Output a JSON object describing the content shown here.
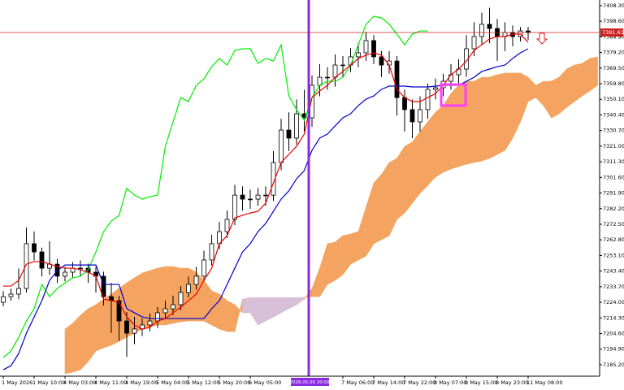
{
  "chart_data": {
    "type": "candlestick",
    "ylim": [
      7178.1,
      7411.8
    ],
    "yticks": [
      {
        "value": 7408.3,
        "label": "7408.30"
      },
      {
        "value": 7398.6,
        "label": "7398.60"
      },
      {
        "value": 7388.9,
        "label": "7388.90"
      },
      {
        "value": 7379.2,
        "label": "7379.20"
      },
      {
        "value": 7369.5,
        "label": "7369.50"
      },
      {
        "value": 7359.8,
        "label": "7359.80"
      },
      {
        "value": 7350.1,
        "label": "7350.10"
      },
      {
        "value": 7340.4,
        "label": "7340.40"
      },
      {
        "value": 7330.7,
        "label": "7330.70"
      },
      {
        "value": 7321.0,
        "label": "7321.00"
      },
      {
        "value": 7311.3,
        "label": "7311.30"
      },
      {
        "value": 7301.6,
        "label": "7301.60"
      },
      {
        "value": 7291.9,
        "label": "7291.90"
      },
      {
        "value": 7282.2,
        "label": "7282.20"
      },
      {
        "value": 7272.5,
        "label": "7272.50"
      },
      {
        "value": 7262.8,
        "label": "7262.80"
      },
      {
        "value": 7253.1,
        "label": "7253.10"
      },
      {
        "value": 7243.4,
        "label": "7243.40"
      },
      {
        "value": 7233.7,
        "label": "7233.70"
      },
      {
        "value": 7224.0,
        "label": "7224.00"
      },
      {
        "value": 7214.3,
        "label": "7214.30"
      },
      {
        "value": 7204.6,
        "label": "7204.60"
      },
      {
        "value": 7194.9,
        "label": "7194.90"
      },
      {
        "value": 7185.2,
        "label": "7185.20"
      }
    ],
    "xticks": [
      {
        "value": 0,
        "label": "1 May 2026"
      },
      {
        "value": 4,
        "label": "1 May 10:00"
      },
      {
        "value": 8,
        "label": "4 May 03:00"
      },
      {
        "value": 12,
        "label": "4 May 11:00"
      },
      {
        "value": 16,
        "label": "4 May 19:00"
      },
      {
        "value": 20,
        "label": "5 May 04:00"
      },
      {
        "value": 24,
        "label": "5 May 12:00"
      },
      {
        "value": 28,
        "label": "5 May 20:00"
      },
      {
        "value": 32,
        "label": "6 May 05:00"
      },
      {
        "value": 44,
        "label": "7 May 06:00"
      },
      {
        "value": 48,
        "label": "7 May 14:00"
      },
      {
        "value": 52,
        "label": "7 May 22:00"
      },
      {
        "value": 56,
        "label": "8 May 07:00"
      },
      {
        "value": 60,
        "label": "8 May 15:00"
      },
      {
        "value": 64,
        "label": "8 May 23:00"
      },
      {
        "value": 68,
        "label": "11 May 08:00"
      }
    ],
    "candles": {
      "color_up": "#ffffff",
      "color_down": "#000000",
      "open": [
        7224.0,
        7227.5,
        7229.1,
        7232.6,
        7260.4,
        7255.3,
        7245.2,
        7247.7,
        7240.2,
        7242.7,
        7245.2,
        7245.2,
        7242.7,
        7240.2,
        7227.5,
        7225.0,
        7212.4,
        7204.8,
        7207.4,
        7209.9,
        7212.4,
        7217.5,
        7220.0,
        7222.5,
        7230.1,
        7235.1,
        7240.2,
        7250.3,
        7260.4,
        7267.9,
        7275.5,
        7290.6,
        7288.1,
        7288.1,
        7290.6,
        7290.6,
        7310.8,
        7331.0,
        7326.0,
        7341.1,
        7338.6,
        7358.8,
        7363.8,
        7363.8,
        7371.4,
        7371.4,
        7376.5,
        7379.0,
        7386.6,
        7376.5,
        7371.4,
        7373.9,
        7351.2,
        7343.7,
        7336.1,
        7343.7,
        7356.3,
        7357.3,
        7361.3,
        7365.4,
        7368.9,
        7381.5,
        7389.1,
        7396.7,
        7394.1,
        7389.1,
        7391.6,
        7389.1,
        7392.6
      ],
      "high": [
        7231.0,
        7232.5,
        7245.0,
        7270.5,
        7268.0,
        7258.0,
        7262.0,
        7251.0,
        7246.0,
        7249.0,
        7250.0,
        7248.0,
        7246.0,
        7243.0,
        7236.0,
        7228.0,
        7218.0,
        7215.0,
        7214.0,
        7217.0,
        7221.0,
        7225.0,
        7228.0,
        7234.0,
        7240.0,
        7246.0,
        7256.0,
        7266.0,
        7274.0,
        7281.0,
        7297.0,
        7296.0,
        7294.0,
        7295.0,
        7296.0,
        7318.0,
        7338.0,
        7342.0,
        7350.0,
        7356.0,
        7365.0,
        7372.0,
        7370.0,
        7378.0,
        7377.0,
        7382.0,
        7385.0,
        7392.0,
        7390.0,
        7380.0,
        7380.0,
        7377.0,
        7356.0,
        7350.0,
        7352.0,
        7360.0,
        7363.0,
        7366.0,
        7372.0,
        7375.0,
        7390.0,
        7398.0,
        7404.0,
        7407.0,
        7400.0,
        7398.0,
        7396.0,
        7395.0,
        7395.0
      ],
      "low": [
        7221.5,
        7225.0,
        7226.0,
        7230.0,
        7250.0,
        7240.0,
        7241.0,
        7236.0,
        7237.0,
        7239.0,
        7240.0,
        7236.0,
        7230.0,
        7222.0,
        7205.0,
        7200.0,
        7190.0,
        7198.0,
        7203.0,
        7206.0,
        7208.0,
        7214.0,
        7216.0,
        7219.0,
        7227.0,
        7232.0,
        7237.0,
        7247.0,
        7257.0,
        7264.0,
        7272.0,
        7281.0,
        7282.0,
        7284.0,
        7284.0,
        7287.0,
        7306.0,
        7318.0,
        7322.0,
        7330.0,
        7333.0,
        7352.0,
        7356.0,
        7358.0,
        7364.0,
        7367.0,
        7370.0,
        7374.0,
        7372.0,
        7364.0,
        7366.0,
        7340.0,
        7330.0,
        7326.0,
        7330.0,
        7338.0,
        7350.0,
        7352.0,
        7356.0,
        7360.0,
        7364.0,
        7377.0,
        7384.0,
        7385.0,
        7374.0,
        7380.0,
        7383.0,
        7386.0,
        7387.0
      ],
      "close": [
        7227.5,
        7229.1,
        7232.6,
        7260.4,
        7255.3,
        7245.2,
        7247.7,
        7240.2,
        7242.7,
        7245.2,
        7245.2,
        7242.7,
        7240.2,
        7227.5,
        7225.0,
        7212.4,
        7204.8,
        7207.4,
        7209.9,
        7212.4,
        7217.5,
        7220.0,
        7222.5,
        7230.1,
        7235.1,
        7240.2,
        7250.3,
        7260.4,
        7267.9,
        7275.5,
        7290.6,
        7288.1,
        7288.1,
        7290.6,
        7290.6,
        7310.8,
        7331.0,
        7326.0,
        7341.1,
        7338.6,
        7358.8,
        7363.8,
        7363.8,
        7371.4,
        7371.4,
        7376.5,
        7379.0,
        7386.6,
        7376.5,
        7371.4,
        7373.9,
        7351.2,
        7343.7,
        7336.1,
        7343.7,
        7356.3,
        7357.3,
        7361.3,
        7365.4,
        7368.9,
        7381.5,
        7389.1,
        7396.7,
        7394.1,
        7389.1,
        7391.6,
        7389.1,
        7392.6,
        7391.6
      ]
    },
    "cloud": {
      "colors": [
        "#f4a460",
        "#d8bfd8"
      ],
      "span_a": [
        null,
        null,
        null,
        null,
        null,
        null,
        null,
        null,
        7207.4,
        7210.9,
        7215.9,
        7220.0,
        7222.5,
        7226.0,
        7229.1,
        7232.6,
        7236.1,
        7239.2,
        7242.2,
        7243.7,
        7245.2,
        7246.2,
        7246.2,
        7245.2,
        7245.2,
        7242.7,
        7237.6,
        7231.1,
        7229.1,
        7225.0,
        7222.5,
        7217.5,
        7217.5,
        7209.9,
        7212.4,
        7214.9,
        7217.5,
        7220.0,
        7222.5,
        7226.0,
        7232.6,
        7245.2,
        7260.4,
        7261.4,
        7265.4,
        7266.4,
        7267.9,
        7283.1,
        7298.2,
        7303.3,
        7310.8,
        7313.4,
        7320.9,
        7323.5,
        7330.0,
        7336.1,
        7342.1,
        7346.2,
        7353.7,
        7358.8,
        7361.3,
        7361.3,
        7363.8,
        7363.8,
        7365.4,
        7366.4,
        7366.4,
        7366.4,
        7363.8,
        7358.8,
        7361.3,
        7361.3,
        7363.8,
        7368.9,
        7371.4,
        7372.4,
        7375.5,
        7376.5
      ],
      "span_b": [
        null,
        null,
        null,
        null,
        null,
        null,
        null,
        null,
        7179.6,
        7180.6,
        7182.1,
        7187.2,
        7193.7,
        7195.7,
        7197.3,
        7199.8,
        7202.3,
        7204.8,
        7207.4,
        7208.9,
        7209.9,
        7209.9,
        7210.9,
        7211.9,
        7212.4,
        7212.4,
        7212.4,
        7209.9,
        7207.4,
        7205.8,
        7205.8,
        7226.0,
        7227.0,
        7227.0,
        7227.0,
        7227.0,
        7227.0,
        7227.0,
        7227.0,
        7227.0,
        7227.5,
        7227.5,
        7235.1,
        7237.6,
        7241.2,
        7247.7,
        7250.3,
        7252.8,
        7260.4,
        7262.9,
        7265.4,
        7275.5,
        7279.5,
        7285.6,
        7291.7,
        7296.7,
        7301.8,
        7304.8,
        7306.8,
        7308.3,
        7309.8,
        7310.8,
        7311.8,
        7313.4,
        7315.9,
        7318.4,
        7326.0,
        7336.1,
        7348.7,
        7351.2,
        7346.2,
        7338.6,
        7341.1,
        7345.2,
        7348.7,
        7352.2,
        7355.3,
        7358.8
      ]
    },
    "lines": [
      {
        "color": "#00ee00",
        "values": [
          7189.7,
          7193.7,
          7202.3,
          7212.4,
          7220.0,
          7235.1,
          7227.5,
          7232.6,
          7236.1,
          7239.2,
          7240.2,
          7244.2,
          7255.3,
          7267.9,
          7274.5,
          7278.0,
          7294.7,
          7290.6,
          7288.1,
          7289.6,
          7290.6,
          7320.9,
          7336.1,
          7351.2,
          7348.7,
          7358.8,
          7362.8,
          7370.4,
          7375.5,
          7371.4,
          7380.5,
          7381.5,
          7381.5,
          7372.4,
          7375.5,
          7373.9,
          7384.0,
          7352.2,
          7343.7,
          7337.1,
          7351.2,
          7358.8,
          7361.3,
          7361.3,
          7363.8,
          7371.4,
          7384.0,
          7396.7,
          7401.7,
          7400.7,
          7396.7,
          7390.6,
          7384.0,
          7390.6,
          7392.6,
          7392.6
        ]
      },
      {
        "color": "#0000cc",
        "values": [
          7182.1,
          7184.6,
          7192.2,
          7204.8,
          7214.9,
          7225.0,
          7237.6,
          7243.7,
          7247.2,
          7247.2,
          7247.2,
          7247.2,
          7247.2,
          7235.1,
          7235.1,
          7235.1,
          7220.0,
          7217.5,
          7214.9,
          7213.9,
          7213.9,
          7213.9,
          7213.9,
          7213.9,
          7213.9,
          7213.9,
          7213.9,
          7220.0,
          7225.0,
          7235.1,
          7245.2,
          7255.3,
          7260.4,
          7267.9,
          7273.0,
          7280.5,
          7288.1,
          7293.2,
          7300.7,
          7305.8,
          7318.4,
          7326.0,
          7328.5,
          7333.6,
          7338.6,
          7341.1,
          7346.2,
          7350.2,
          7352.2,
          7356.3,
          7358.3,
          7358.3,
          7358.3,
          7357.8,
          7357.8,
          7357.8,
          7358.3,
          7358.8,
          7358.8,
          7358.8,
          7361.3,
          7363.8,
          7367.4,
          7368.9,
          7370.4,
          7371.4,
          7375.5,
          7379.0,
          7381.5
        ]
      },
      {
        "color": "#ee0000",
        "values": [
          7234.1,
          7234.1,
          7237.6,
          7247.7,
          7249.3,
          7249.3,
          7247.7,
          7246.2,
          7245.2,
          7245.2,
          7244.2,
          7242.7,
          7240.2,
          7226.0,
          7225.0,
          7224.0,
          7214.9,
          7209.9,
          7207.4,
          7208.4,
          7212.4,
          7213.9,
          7217.5,
          7221.0,
          7225.0,
          7229.1,
          7237.6,
          7245.2,
          7260.4,
          7265.4,
          7276.5,
          7278.0,
          7279.5,
          7280.5,
          7285.6,
          7298.2,
          7310.8,
          7315.9,
          7320.9,
          7328.5,
          7351.2,
          7355.3,
          7358.8,
          7363.8,
          7367.4,
          7371.4,
          7375.5,
          7377.5,
          7379.0,
          7377.5,
          7371.4,
          7356.3,
          7351.2,
          7348.7,
          7348.7,
          7351.2,
          7353.7,
          7358.8,
          7365.4,
          7368.9,
          7373.9,
          7380.5,
          7384.0,
          7387.6,
          7389.1,
          7389.1,
          7390.6,
          7390.6,
          7385.6
        ]
      }
    ],
    "current_price": {
      "value": 7391.61,
      "label": "7391.61",
      "color": "#cc2222"
    },
    "cursor_label": "2026.05.06 20:00"
  }
}
